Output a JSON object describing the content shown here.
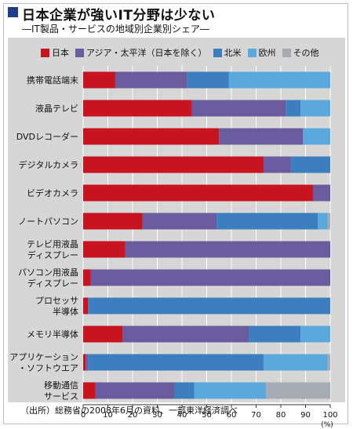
{
  "header": {
    "title": "日本企業が強いIT分野は少ない",
    "subtitle": "―IT製品・サービスの地域別企業別シェア―"
  },
  "footer": {
    "source": "（出所）総務省の2008年6月の資料、一部東洋経済調べ"
  },
  "colors": {
    "japan": "#c8141e",
    "asia": "#6a5a9e",
    "na": "#3b7fc0",
    "eu": "#5aa9dc",
    "other": "#a6aab2",
    "panel": "#d6d6d6",
    "grid": "#ffffff"
  },
  "chart_data": {
    "type": "bar",
    "orientation": "horizontal",
    "stacked": true,
    "categories": [
      "携帯電話端末",
      "液晶テレビ",
      "DVDレコーダー",
      "デジタルカメラ",
      "ビデオカメラ",
      "ノートパソコン",
      "テレビ用液晶\nディスプレー",
      "パソコン用液晶\nディスプレー",
      "プロセッサ\n半導体",
      "メモリ半導体",
      "アプリケーション\n・ソフトウエア",
      "移動通信\nサービス"
    ],
    "series": [
      {
        "name": "日本",
        "color_key": "japan",
        "values": [
          13,
          44,
          55,
          73,
          93,
          24,
          17,
          3,
          2,
          16,
          1,
          5
        ]
      },
      {
        "name": "アジア・太平洋（日本を除く）",
        "color_key": "asia",
        "values": [
          29,
          38,
          34,
          11,
          7,
          30,
          83,
          97,
          0,
          51,
          1,
          32
        ]
      },
      {
        "name": "北米",
        "color_key": "na",
        "values": [
          17,
          6,
          0,
          16,
          0,
          41,
          0,
          0,
          98,
          21,
          71,
          8
        ]
      },
      {
        "name": "欧州",
        "color_key": "eu",
        "values": [
          41,
          12,
          11,
          0,
          0,
          4,
          0,
          0,
          0,
          12,
          26,
          29
        ]
      },
      {
        "name": "その他",
        "color_key": "other",
        "values": [
          0,
          0,
          0,
          0,
          0,
          1,
          0,
          0,
          0,
          0,
          1,
          26
        ]
      }
    ],
    "xlim": [
      0,
      100
    ],
    "xticks": [
      0,
      10,
      20,
      30,
      40,
      50,
      60,
      70,
      80,
      90,
      100
    ],
    "x_unit": "(%)",
    "grid": true,
    "legend": "top"
  }
}
